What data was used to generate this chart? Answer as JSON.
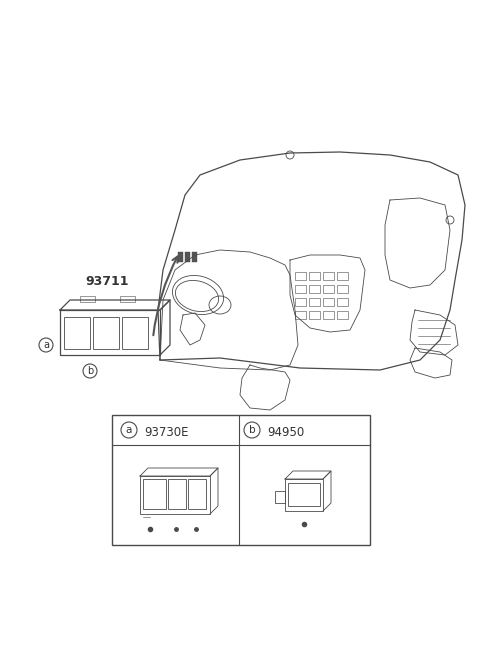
{
  "bg_color": "#ffffff",
  "line_color": "#4a4a4a",
  "label_color": "#333333",
  "part_number_main": "93711",
  "part_a_number": "93730E",
  "part_b_number": "94950",
  "label_a": "a",
  "label_b": "b",
  "fig_w": 4.8,
  "fig_h": 6.55,
  "dpi": 100
}
